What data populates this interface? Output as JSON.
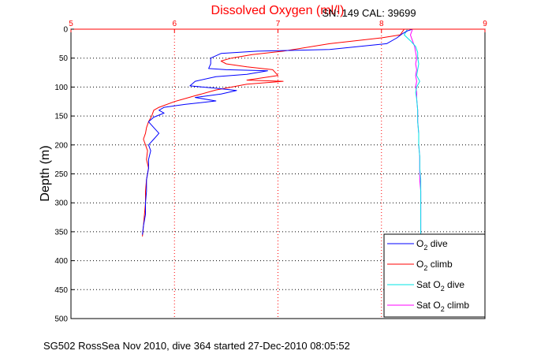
{
  "title": "Dissolved Oxygen (ml/l)",
  "serial": "SN: 149  CAL: 39699",
  "ylabel": "Depth (m)",
  "footer": "SG502 RossSea Nov 2010, dive 364 started 27-Dec-2010 08:05:52",
  "colors": {
    "axis_x": "#ff0000",
    "o2_dive": "#0000ff",
    "o2_climb": "#ff0000",
    "sat_dive": "#00e5e5",
    "sat_climb": "#ff00ff"
  },
  "chart_data": {
    "type": "line",
    "title": "Dissolved Oxygen (ml/l)",
    "xlabel": "",
    "ylabel": "Depth (m)",
    "xlim": [
      5,
      9
    ],
    "ylim": [
      0,
      500
    ],
    "y_inverted": true,
    "x_axis_position": "top",
    "grid": true,
    "legend_position": "bottom-right",
    "xticks": [
      5,
      6,
      7,
      8,
      9
    ],
    "yticks": [
      0,
      50,
      100,
      150,
      200,
      250,
      300,
      350,
      400,
      450,
      500
    ],
    "series": [
      {
        "name": "O2 dive",
        "label_main": "O",
        "label_sub": "2",
        "label_rest": " dive",
        "color": "#0000ff",
        "points": [
          [
            8.3,
            0
          ],
          [
            8.25,
            3
          ],
          [
            8.2,
            8
          ],
          [
            8.15,
            15
          ],
          [
            8.05,
            25
          ],
          [
            7.5,
            35
          ],
          [
            6.8,
            38
          ],
          [
            6.45,
            42
          ],
          [
            6.35,
            50
          ],
          [
            6.35,
            60
          ],
          [
            6.33,
            68
          ],
          [
            6.5,
            70
          ],
          [
            6.9,
            72
          ],
          [
            6.7,
            78
          ],
          [
            6.4,
            82
          ],
          [
            6.2,
            90
          ],
          [
            6.15,
            98
          ],
          [
            6.4,
            102
          ],
          [
            6.6,
            106
          ],
          [
            6.45,
            112
          ],
          [
            6.2,
            118
          ],
          [
            6.4,
            124
          ],
          [
            6.1,
            130
          ],
          [
            5.9,
            135
          ],
          [
            5.85,
            140
          ],
          [
            5.9,
            145
          ],
          [
            5.8,
            152
          ],
          [
            5.75,
            160
          ],
          [
            5.8,
            170
          ],
          [
            5.85,
            180
          ],
          [
            5.8,
            190
          ],
          [
            5.75,
            200
          ],
          [
            5.77,
            210
          ],
          [
            5.75,
            225
          ],
          [
            5.75,
            240
          ],
          [
            5.73,
            260
          ],
          [
            5.73,
            280
          ],
          [
            5.72,
            300
          ],
          [
            5.72,
            320
          ],
          [
            5.7,
            340
          ],
          [
            5.69,
            355
          ]
        ]
      },
      {
        "name": "O2 climb",
        "label_main": "O",
        "label_sub": "2",
        "label_rest": " climb",
        "color": "#ff0000",
        "points": [
          [
            8.22,
            0
          ],
          [
            8.2,
            5
          ],
          [
            8.18,
            10
          ],
          [
            8.0,
            15
          ],
          [
            7.5,
            25
          ],
          [
            7.05,
            38
          ],
          [
            6.75,
            44
          ],
          [
            6.55,
            50
          ],
          [
            6.45,
            55
          ],
          [
            6.5,
            60
          ],
          [
            6.7,
            65
          ],
          [
            6.95,
            70
          ],
          [
            7.0,
            80
          ],
          [
            6.7,
            88
          ],
          [
            7.05,
            90
          ],
          [
            6.7,
            95
          ],
          [
            6.4,
            105
          ],
          [
            6.2,
            115
          ],
          [
            6.0,
            125
          ],
          [
            5.85,
            135
          ],
          [
            5.8,
            140
          ],
          [
            5.78,
            150
          ],
          [
            5.75,
            160
          ],
          [
            5.73,
            170
          ],
          [
            5.72,
            180
          ],
          [
            5.7,
            190
          ],
          [
            5.72,
            200
          ],
          [
            5.74,
            210
          ],
          [
            5.73,
            225
          ],
          [
            5.75,
            240
          ],
          [
            5.73,
            260
          ],
          [
            5.72,
            280
          ],
          [
            5.72,
            300
          ],
          [
            5.71,
            320
          ],
          [
            5.7,
            340
          ],
          [
            5.69,
            358
          ]
        ]
      },
      {
        "name": "Sat O2 dive",
        "label_main": "Sat O",
        "label_sub": "2",
        "label_rest": " dive",
        "color": "#00e5e5",
        "points": [
          [
            8.25,
            0
          ],
          [
            8.22,
            10
          ],
          [
            8.28,
            20
          ],
          [
            8.33,
            30
          ],
          [
            8.35,
            40
          ],
          [
            8.35,
            50
          ],
          [
            8.36,
            60
          ],
          [
            8.35,
            70
          ],
          [
            8.34,
            80
          ],
          [
            8.37,
            90
          ],
          [
            8.34,
            100
          ],
          [
            8.33,
            110
          ],
          [
            8.34,
            120
          ],
          [
            8.35,
            140
          ],
          [
            8.35,
            160
          ],
          [
            8.36,
            180
          ],
          [
            8.36,
            200
          ],
          [
            8.37,
            220
          ],
          [
            8.37,
            240
          ],
          [
            8.38,
            260
          ],
          [
            8.38,
            280
          ],
          [
            8.38,
            300
          ],
          [
            8.38,
            320
          ],
          [
            8.38,
            340
          ],
          [
            8.38,
            355
          ]
        ]
      },
      {
        "name": "Sat O2 climb",
        "label_main": "Sat O",
        "label_sub": "2",
        "label_rest": " climb",
        "color": "#ff00ff",
        "points": [
          [
            8.3,
            0
          ],
          [
            8.28,
            10
          ],
          [
            8.3,
            20
          ],
          [
            8.32,
            30
          ],
          [
            8.33,
            40
          ],
          [
            8.34,
            50
          ],
          [
            8.33,
            60
          ],
          [
            8.34,
            70
          ],
          [
            8.33,
            80
          ],
          [
            8.34,
            90
          ],
          [
            8.33,
            100
          ],
          [
            8.34,
            110
          ],
          [
            8.34,
            120
          ],
          [
            8.35,
            140
          ],
          [
            8.35,
            160
          ],
          [
            8.36,
            180
          ],
          [
            8.36,
            200
          ],
          [
            8.37,
            220
          ],
          [
            8.37,
            240
          ],
          [
            8.37,
            260
          ],
          [
            8.38,
            280
          ],
          [
            8.38,
            300
          ],
          [
            8.38,
            320
          ],
          [
            8.38,
            340
          ],
          [
            8.38,
            355
          ]
        ]
      }
    ]
  }
}
